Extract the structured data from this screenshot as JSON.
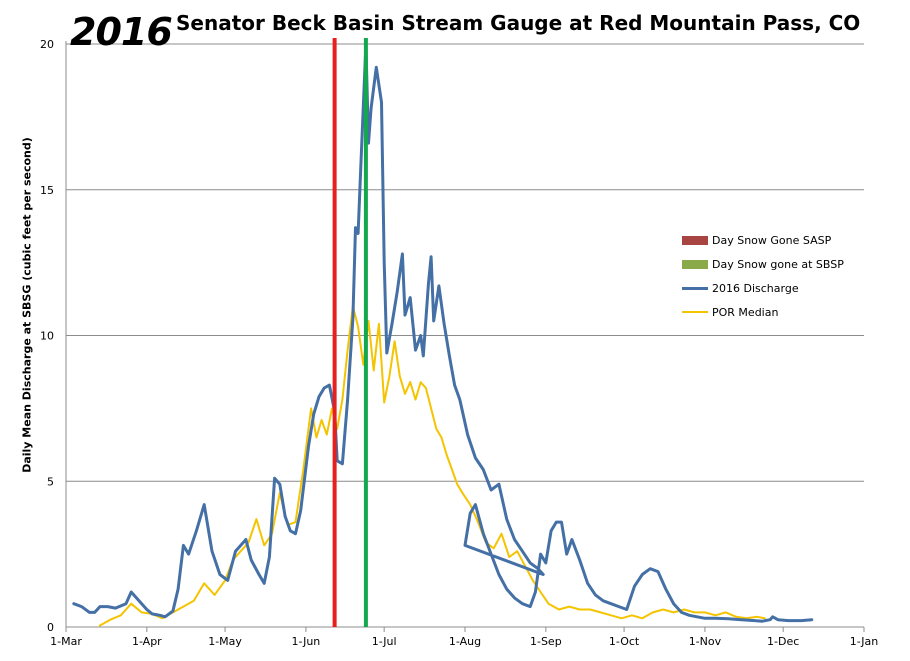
{
  "chart_data": {
    "type": "line",
    "title": "Senator Beck Basin Stream Gauge at Red Mountain Pass, CO",
    "badge": "2016",
    "xlabel": "",
    "ylabel": "Daily Mean Discharge at SBSG (cubic feet per second)",
    "ylim": [
      0,
      20
    ],
    "yticks": [
      "0",
      "5",
      "10",
      "15",
      "20"
    ],
    "xticks": [
      "1-Mar",
      "1-Apr",
      "1-May",
      "1-Jun",
      "1-Jul",
      "1-Aug",
      "1-Sep",
      "1-Oct",
      "1-Nov",
      "1-Dec",
      "1-Jan"
    ],
    "x_unit": "date (2016)",
    "grid": "horizontal",
    "legend_position": "right",
    "markers": [
      {
        "name": "Day Snow Gone SASP",
        "date": "2016-06-12",
        "color": "#e81f1f",
        "swatch_color": "#a84441"
      },
      {
        "name": "Day Snow gone at SBSP",
        "date": "2016-06-24",
        "color": "#14a84e",
        "swatch_color": "#8aaa4a"
      }
    ],
    "series": [
      {
        "name": "2016 Discharge",
        "color": "#4470a6",
        "points": [
          [
            "2016-03-04",
            0.8
          ],
          [
            "2016-03-07",
            0.7
          ],
          [
            "2016-03-10",
            0.5
          ],
          [
            "2016-03-12",
            0.5
          ],
          [
            "2016-03-14",
            0.7
          ],
          [
            "2016-03-17",
            0.7
          ],
          [
            "2016-03-20",
            0.65
          ],
          [
            "2016-03-24",
            0.8
          ],
          [
            "2016-03-26",
            1.2
          ],
          [
            "2016-03-29",
            0.9
          ],
          [
            "2016-04-01",
            0.6
          ],
          [
            "2016-04-03",
            0.45
          ],
          [
            "2016-04-06",
            0.4
          ],
          [
            "2016-04-08",
            0.35
          ],
          [
            "2016-04-11",
            0.55
          ],
          [
            "2016-04-13",
            1.3
          ],
          [
            "2016-04-15",
            2.8
          ],
          [
            "2016-04-17",
            2.5
          ],
          [
            "2016-04-20",
            3.3
          ],
          [
            "2016-04-23",
            4.2
          ],
          [
            "2016-04-26",
            2.6
          ],
          [
            "2016-04-29",
            1.8
          ],
          [
            "2016-05-02",
            1.6
          ],
          [
            "2016-05-05",
            2.6
          ],
          [
            "2016-05-07",
            2.8
          ],
          [
            "2016-05-09",
            3.0
          ],
          [
            "2016-05-11",
            2.3
          ],
          [
            "2016-05-14",
            1.8
          ],
          [
            "2016-05-16",
            1.5
          ],
          [
            "2016-05-18",
            2.4
          ],
          [
            "2016-05-20",
            5.1
          ],
          [
            "2016-05-22",
            4.9
          ],
          [
            "2016-05-24",
            3.8
          ],
          [
            "2016-05-26",
            3.3
          ],
          [
            "2016-05-28",
            3.2
          ],
          [
            "2016-05-30",
            4.0
          ],
          [
            "2016-06-02",
            6.2
          ],
          [
            "2016-06-04",
            7.3
          ],
          [
            "2016-06-06",
            7.9
          ],
          [
            "2016-06-08",
            8.2
          ],
          [
            "2016-06-10",
            8.3
          ],
          [
            "2016-06-12",
            7.4
          ],
          [
            "2016-06-13",
            5.7
          ],
          [
            "2016-06-15",
            5.6
          ],
          [
            "2016-06-17",
            7.8
          ],
          [
            "2016-06-19",
            10.6
          ],
          [
            "2016-06-20",
            13.7
          ],
          [
            "2016-06-21",
            13.5
          ],
          [
            "2016-06-22",
            15.7
          ],
          [
            "2016-06-24",
            20.0
          ],
          [
            "2016-06-25",
            16.6
          ],
          [
            "2016-06-26",
            17.8
          ],
          [
            "2016-06-28",
            19.2
          ],
          [
            "2016-06-30",
            18.0
          ],
          [
            "2016-07-01",
            12.5
          ],
          [
            "2016-07-02",
            9.4
          ],
          [
            "2016-07-04",
            10.4
          ],
          [
            "2016-07-06",
            11.5
          ],
          [
            "2016-07-08",
            12.8
          ],
          [
            "2016-07-09",
            10.7
          ],
          [
            "2016-07-11",
            11.3
          ],
          [
            "2016-07-13",
            9.5
          ],
          [
            "2016-07-15",
            10.0
          ],
          [
            "2016-07-16",
            9.3
          ],
          [
            "2016-07-18",
            11.8
          ],
          [
            "2016-07-19",
            12.7
          ],
          [
            "2016-07-20",
            10.5
          ],
          [
            "2016-07-22",
            11.7
          ],
          [
            "2016-07-24",
            10.4
          ],
          [
            "2016-07-26",
            9.3
          ],
          [
            "2016-07-28",
            8.3
          ],
          [
            "2016-07-30",
            7.8
          ],
          [
            "2016-08-02",
            6.6
          ],
          [
            "2016-08-05",
            5.8
          ],
          [
            "2016-08-08",
            5.4
          ],
          [
            "2016-08-11",
            4.7
          ],
          [
            "2016-08-14",
            4.9
          ],
          [
            "2016-08-17",
            3.7
          ],
          [
            "2016-08-20",
            3.0
          ],
          [
            "2016-08-23",
            2.6
          ],
          [
            "2016-08-26",
            2.2
          ],
          [
            "2016-08-29",
            2.0
          ],
          [
            "2016-08-31",
            1.8
          ],
          [
            "2016-08-01",
            2.8
          ],
          [
            "2016-08-03",
            3.9
          ],
          [
            "2016-08-05",
            4.2
          ],
          [
            "2016-08-08",
            3.2
          ],
          [
            "2016-08-11",
            2.5
          ],
          [
            "2016-08-14",
            1.8
          ],
          [
            "2016-08-17",
            1.3
          ],
          [
            "2016-08-20",
            1.0
          ],
          [
            "2016-08-23",
            0.8
          ],
          [
            "2016-08-26",
            0.7
          ],
          [
            "2016-08-28",
            1.2
          ],
          [
            "2016-08-30",
            2.5
          ],
          [
            "2016-09-01",
            2.2
          ],
          [
            "2016-09-03",
            3.3
          ],
          [
            "2016-09-05",
            3.6
          ],
          [
            "2016-09-07",
            3.6
          ],
          [
            "2016-09-09",
            2.5
          ],
          [
            "2016-09-11",
            3.0
          ],
          [
            "2016-09-14",
            2.3
          ],
          [
            "2016-09-17",
            1.5
          ],
          [
            "2016-09-20",
            1.1
          ],
          [
            "2016-09-23",
            0.9
          ],
          [
            "2016-09-26",
            0.8
          ],
          [
            "2016-09-29",
            0.7
          ],
          [
            "2016-10-02",
            0.6
          ],
          [
            "2016-10-05",
            1.4
          ],
          [
            "2016-10-08",
            1.8
          ],
          [
            "2016-10-11",
            2.0
          ],
          [
            "2016-10-14",
            1.9
          ],
          [
            "2016-10-17",
            1.3
          ],
          [
            "2016-10-20",
            0.8
          ],
          [
            "2016-10-23",
            0.5
          ],
          [
            "2016-10-26",
            0.4
          ],
          [
            "2016-10-29",
            0.35
          ],
          [
            "2016-11-01",
            0.3
          ],
          [
            "2016-11-05",
            0.3
          ],
          [
            "2016-11-10",
            0.28
          ],
          [
            "2016-11-15",
            0.25
          ],
          [
            "2016-11-20",
            0.22
          ],
          [
            "2016-11-23",
            0.2
          ],
          [
            "2016-11-26",
            0.25
          ],
          [
            "2016-11-27",
            0.35
          ],
          [
            "2016-11-29",
            0.25
          ],
          [
            "2016-12-03",
            0.22
          ],
          [
            "2016-12-08",
            0.22
          ],
          [
            "2016-12-12",
            0.25
          ]
        ]
      },
      {
        "name": "POR Median",
        "color": "#f5c400",
        "points": [
          [
            "2016-03-14",
            0.05
          ],
          [
            "2016-03-18",
            0.25
          ],
          [
            "2016-03-22",
            0.4
          ],
          [
            "2016-03-26",
            0.8
          ],
          [
            "2016-03-30",
            0.5
          ],
          [
            "2016-04-03",
            0.45
          ],
          [
            "2016-04-07",
            0.3
          ],
          [
            "2016-04-11",
            0.5
          ],
          [
            "2016-04-15",
            0.7
          ],
          [
            "2016-04-19",
            0.9
          ],
          [
            "2016-04-23",
            1.5
          ],
          [
            "2016-04-27",
            1.1
          ],
          [
            "2016-05-01",
            1.6
          ],
          [
            "2016-05-04",
            2.3
          ],
          [
            "2016-05-07",
            2.6
          ],
          [
            "2016-05-10",
            2.9
          ],
          [
            "2016-05-13",
            3.7
          ],
          [
            "2016-05-16",
            2.8
          ],
          [
            "2016-05-19",
            3.2
          ],
          [
            "2016-05-22",
            4.6
          ],
          [
            "2016-05-25",
            3.5
          ],
          [
            "2016-05-28",
            3.6
          ],
          [
            "2016-05-31",
            5.4
          ],
          [
            "2016-06-03",
            7.5
          ],
          [
            "2016-06-05",
            6.5
          ],
          [
            "2016-06-07",
            7.1
          ],
          [
            "2016-06-09",
            6.6
          ],
          [
            "2016-06-11",
            7.5
          ],
          [
            "2016-06-13",
            6.8
          ],
          [
            "2016-06-15",
            7.8
          ],
          [
            "2016-06-17",
            9.5
          ],
          [
            "2016-06-19",
            11.0
          ],
          [
            "2016-06-21",
            10.3
          ],
          [
            "2016-06-23",
            9.0
          ],
          [
            "2016-06-25",
            10.5
          ],
          [
            "2016-06-27",
            8.8
          ],
          [
            "2016-06-29",
            10.4
          ],
          [
            "2016-07-01",
            7.7
          ],
          [
            "2016-07-03",
            8.6
          ],
          [
            "2016-07-05",
            9.8
          ],
          [
            "2016-07-07",
            8.6
          ],
          [
            "2016-07-09",
            8.0
          ],
          [
            "2016-07-11",
            8.4
          ],
          [
            "2016-07-13",
            7.8
          ],
          [
            "2016-07-15",
            8.4
          ],
          [
            "2016-07-17",
            8.2
          ],
          [
            "2016-07-19",
            7.5
          ],
          [
            "2016-07-21",
            6.8
          ],
          [
            "2016-07-23",
            6.5
          ],
          [
            "2016-07-25",
            5.9
          ],
          [
            "2016-07-27",
            5.4
          ],
          [
            "2016-07-29",
            4.9
          ],
          [
            "2016-07-31",
            4.6
          ],
          [
            "2016-08-03",
            4.2
          ],
          [
            "2016-08-06",
            3.6
          ],
          [
            "2016-08-09",
            2.9
          ],
          [
            "2016-08-12",
            2.7
          ],
          [
            "2016-08-15",
            3.2
          ],
          [
            "2016-08-18",
            2.4
          ],
          [
            "2016-08-21",
            2.6
          ],
          [
            "2016-08-24",
            2.1
          ],
          [
            "2016-08-27",
            1.6
          ],
          [
            "2016-08-30",
            1.2
          ],
          [
            "2016-09-02",
            0.8
          ],
          [
            "2016-09-06",
            0.6
          ],
          [
            "2016-09-10",
            0.7
          ],
          [
            "2016-09-14",
            0.6
          ],
          [
            "2016-09-18",
            0.6
          ],
          [
            "2016-09-22",
            0.5
          ],
          [
            "2016-09-26",
            0.4
          ],
          [
            "2016-09-30",
            0.3
          ],
          [
            "2016-10-04",
            0.4
          ],
          [
            "2016-10-08",
            0.3
          ],
          [
            "2016-10-12",
            0.5
          ],
          [
            "2016-10-16",
            0.6
          ],
          [
            "2016-10-20",
            0.5
          ],
          [
            "2016-10-24",
            0.6
          ],
          [
            "2016-10-28",
            0.5
          ],
          [
            "2016-11-01",
            0.5
          ],
          [
            "2016-11-05",
            0.4
          ],
          [
            "2016-11-09",
            0.5
          ],
          [
            "2016-11-13",
            0.35
          ],
          [
            "2016-11-17",
            0.3
          ],
          [
            "2016-11-21",
            0.35
          ],
          [
            "2016-11-24",
            0.3
          ]
        ]
      }
    ]
  }
}
